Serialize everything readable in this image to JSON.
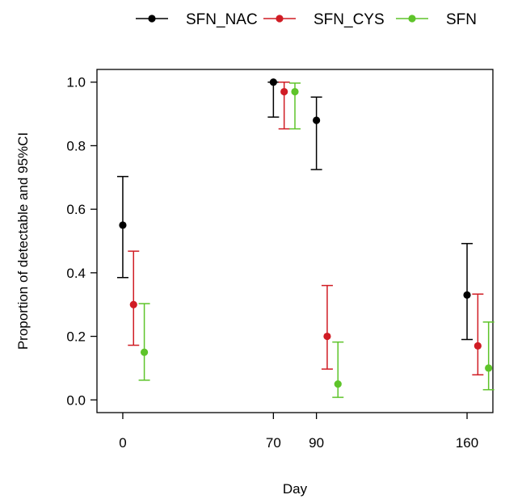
{
  "chart_data": {
    "type": "scatter",
    "xlabel": "Day",
    "ylabel": "Proportion of detectable and 95%CI",
    "xlim": [
      -12,
      172
    ],
    "ylim": [
      -0.04,
      1.04
    ],
    "x_ticks": [
      0,
      70,
      90,
      160
    ],
    "y_ticks": [
      "0.0",
      "0.2",
      "0.4",
      "0.6",
      "0.8",
      "1.0"
    ],
    "grid": false,
    "legend_position": "top",
    "series": [
      {
        "name": "SFN_NAC",
        "color": "#000000",
        "points": [
          {
            "day": 0,
            "x": 0,
            "y": 0.55,
            "lower": 0.385,
            "upper": 0.703
          },
          {
            "day": 70,
            "x": 70,
            "y": 1.0,
            "lower": 0.89,
            "upper": 1.0
          },
          {
            "day": 90,
            "x": 90,
            "y": 0.88,
            "lower": 0.725,
            "upper": 0.953
          },
          {
            "day": 160,
            "x": 160,
            "y": 0.33,
            "lower": 0.19,
            "upper": 0.492
          }
        ]
      },
      {
        "name": "SFN_CYS",
        "color": "#d01c24",
        "points": [
          {
            "day": 0,
            "x": 5,
            "y": 0.3,
            "lower": 0.172,
            "upper": 0.468
          },
          {
            "day": 70,
            "x": 75,
            "y": 0.97,
            "lower": 0.853,
            "upper": 1.0
          },
          {
            "day": 90,
            "x": 95,
            "y": 0.2,
            "lower": 0.097,
            "upper": 0.36
          },
          {
            "day": 160,
            "x": 165,
            "y": 0.17,
            "lower": 0.079,
            "upper": 0.333
          }
        ]
      },
      {
        "name": "SFN",
        "color": "#5ec42a",
        "points": [
          {
            "day": 0,
            "x": 10,
            "y": 0.15,
            "lower": 0.062,
            "upper": 0.303
          },
          {
            "day": 70,
            "x": 80,
            "y": 0.97,
            "lower": 0.853,
            "upper": 0.997
          },
          {
            "day": 90,
            "x": 100,
            "y": 0.05,
            "lower": 0.008,
            "upper": 0.182
          },
          {
            "day": 160,
            "x": 170,
            "y": 0.1,
            "lower": 0.032,
            "upper": 0.245
          }
        ]
      }
    ]
  }
}
